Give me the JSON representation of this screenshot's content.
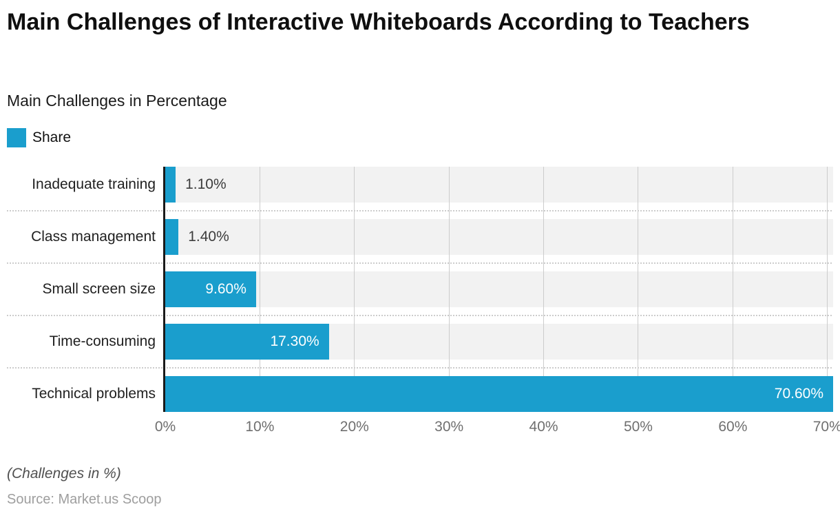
{
  "header": {
    "title": "Main Challenges of Interactive Whiteboards According to Teachers",
    "subtitle": "Main Challenges in Percentage"
  },
  "legend": {
    "label": "Share"
  },
  "footer": {
    "note": "(Challenges in %)",
    "source": "Source: Market.us Scoop"
  },
  "colors": {
    "bar": "#1a9ecd",
    "track": "#f2f2f2",
    "gridline": "#cccccc",
    "axis_line": "#1a1a1a",
    "tick_label": "#6f6f6f"
  },
  "chart_data": {
    "type": "bar",
    "orientation": "horizontal",
    "title": "Main Challenges of Interactive Whiteboards According to Teachers",
    "subtitle": "Main Challenges in Percentage",
    "series_name": "Share",
    "categories": [
      "Inadequate training",
      "Class management",
      "Small screen size",
      "Time-consuming",
      "Technical problems"
    ],
    "values": [
      1.1,
      1.4,
      9.6,
      17.3,
      70.6
    ],
    "value_labels": [
      "1.10%",
      "1.40%",
      "9.60%",
      "17.30%",
      "70.60%"
    ],
    "label_positions": [
      "outside",
      "outside",
      "inside",
      "inside",
      "inside"
    ],
    "x_ticks": [
      "0%",
      "10%",
      "20%",
      "30%",
      "40%",
      "50%",
      "60%",
      "70%"
    ],
    "xlim": [
      0,
      70.6
    ],
    "grid": "vertical-gridlines-and-dotted-row-separators",
    "legend_position": "top-left",
    "xlabel": "",
    "ylabel": ""
  }
}
